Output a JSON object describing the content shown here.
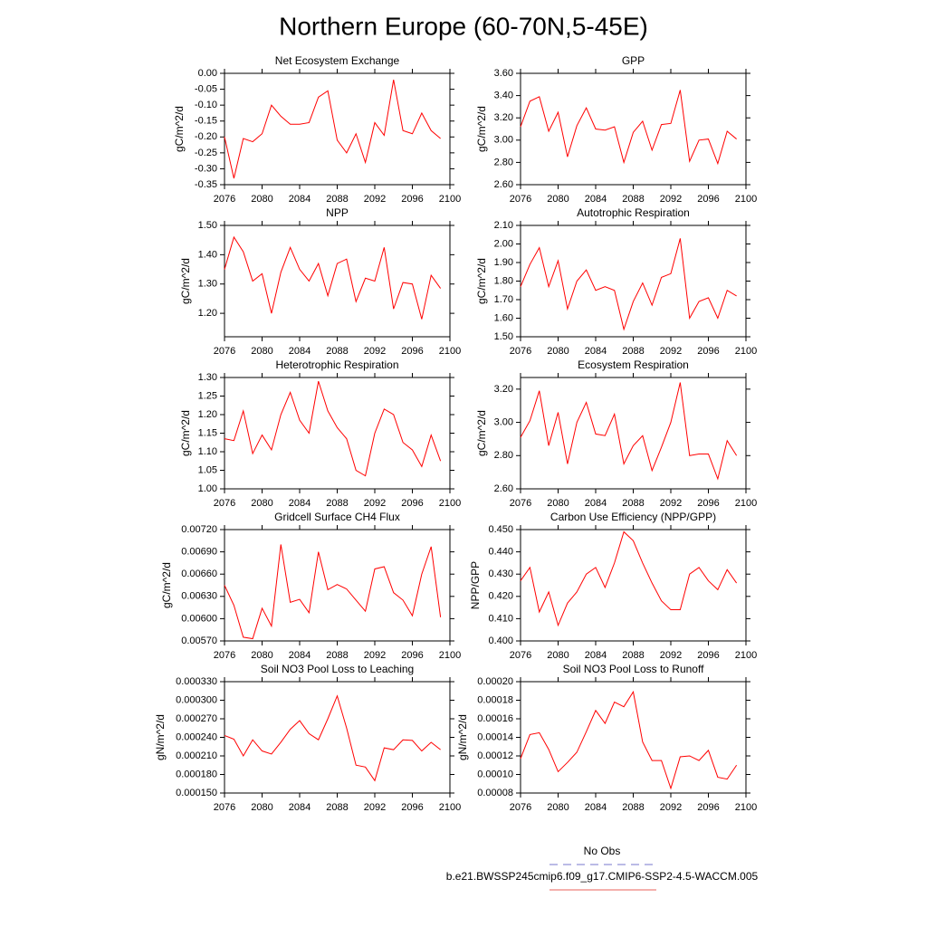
{
  "title": "Northern Europe (60-70N,5-45E)",
  "legend": [
    {
      "name": "No Obs",
      "color": "#7777cc",
      "dash": true
    },
    {
      "name": "b.e21.BWSSP245cmip6.f09_g17.CMIP6-SSP2-4.5-WACCM.005",
      "color": "#e8605a",
      "dash": false
    }
  ],
  "chart_data": [
    {
      "type": "line",
      "title": "Net Ecosystem Exchange",
      "ylabel": "gC/m^2/d",
      "color": "#ff0000",
      "x": [
        2076,
        2077,
        2078,
        2079,
        2080,
        2081,
        2082,
        2083,
        2084,
        2085,
        2086,
        2087,
        2088,
        2089,
        2090,
        2091,
        2092,
        2093,
        2094,
        2095,
        2096,
        2097,
        2098,
        2099
      ],
      "values": [
        -0.2,
        -0.33,
        -0.205,
        -0.215,
        -0.19,
        -0.1,
        -0.135,
        -0.16,
        -0.16,
        -0.155,
        -0.075,
        -0.055,
        -0.21,
        -0.25,
        -0.19,
        -0.28,
        -0.155,
        -0.195,
        -0.02,
        -0.18,
        -0.19,
        -0.125,
        -0.18,
        -0.205
      ],
      "xlim": [
        2076,
        2100
      ],
      "xticks": [
        2076,
        2080,
        2084,
        2088,
        2092,
        2096,
        2100
      ],
      "ylim": [
        -0.35,
        0
      ],
      "yticks": [
        {
          "value": -0.35,
          "label": "-0.35"
        },
        {
          "value": -0.3,
          "label": "-0.30"
        },
        {
          "value": -0.25,
          "label": "-0.25"
        },
        {
          "value": -0.2,
          "label": "-0.20"
        },
        {
          "value": -0.15,
          "label": "-0.15"
        },
        {
          "value": -0.1,
          "label": "-0.10"
        },
        {
          "value": -0.05,
          "label": "-0.05"
        },
        {
          "value": 0,
          "label": "0.00"
        }
      ]
    },
    {
      "type": "line",
      "title": "GPP",
      "ylabel": "gC/m^2/d",
      "color": "#ff0000",
      "x": [
        2076,
        2077,
        2078,
        2079,
        2080,
        2081,
        2082,
        2083,
        2084,
        2085,
        2086,
        2087,
        2088,
        2089,
        2090,
        2091,
        2092,
        2093,
        2094,
        2095,
        2096,
        2097,
        2098,
        2099
      ],
      "values": [
        3.12,
        3.35,
        3.39,
        3.08,
        3.25,
        2.85,
        3.13,
        3.29,
        3.1,
        3.09,
        3.12,
        2.8,
        3.07,
        3.17,
        2.91,
        3.14,
        3.15,
        3.45,
        2.81,
        3.0,
        3.01,
        2.79,
        3.08,
        3.01
      ],
      "xlim": [
        2076,
        2100
      ],
      "xticks": [
        2076,
        2080,
        2084,
        2088,
        2092,
        2096,
        2100
      ],
      "ylim": [
        2.6,
        3.6
      ],
      "yticks": [
        {
          "value": 2.6,
          "label": "2.60"
        },
        {
          "value": 2.8,
          "label": "2.80"
        },
        {
          "value": 3.0,
          "label": "3.00"
        },
        {
          "value": 3.2,
          "label": "3.20"
        },
        {
          "value": 3.4,
          "label": "3.40"
        },
        {
          "value": 3.6,
          "label": "3.60"
        }
      ]
    },
    {
      "type": "line",
      "title": "NPP",
      "ylabel": "gC/m^2/d",
      "color": "#ff0000",
      "x": [
        2076,
        2077,
        2078,
        2079,
        2080,
        2081,
        2082,
        2083,
        2084,
        2085,
        2086,
        2087,
        2088,
        2089,
        2090,
        2091,
        2092,
        2093,
        2094,
        2095,
        2096,
        2097,
        2098,
        2099
      ],
      "values": [
        1.35,
        1.46,
        1.41,
        1.31,
        1.335,
        1.2,
        1.34,
        1.425,
        1.35,
        1.31,
        1.37,
        1.26,
        1.37,
        1.385,
        1.24,
        1.32,
        1.31,
        1.425,
        1.215,
        1.305,
        1.3,
        1.18,
        1.33,
        1.285
      ],
      "xlim": [
        2076,
        2100
      ],
      "xticks": [
        2076,
        2080,
        2084,
        2088,
        2092,
        2096,
        2100
      ],
      "ylim": [
        1.12,
        1.5
      ],
      "yticks": [
        {
          "value": 1.2,
          "label": "1.20"
        },
        {
          "value": 1.3,
          "label": "1.30"
        },
        {
          "value": 1.4,
          "label": "1.40"
        },
        {
          "value": 1.5,
          "label": "1.50"
        }
      ]
    },
    {
      "type": "line",
      "title": "Autotrophic Respiration",
      "ylabel": "gC/m^2/d",
      "color": "#ff0000",
      "x": [
        2076,
        2077,
        2078,
        2079,
        2080,
        2081,
        2082,
        2083,
        2084,
        2085,
        2086,
        2087,
        2088,
        2089,
        2090,
        2091,
        2092,
        2093,
        2094,
        2095,
        2096,
        2097,
        2098,
        2099
      ],
      "values": [
        1.77,
        1.89,
        1.98,
        1.77,
        1.91,
        1.65,
        1.8,
        1.86,
        1.75,
        1.77,
        1.75,
        1.54,
        1.69,
        1.79,
        1.67,
        1.82,
        1.84,
        2.03,
        1.6,
        1.69,
        1.71,
        1.6,
        1.75,
        1.72
      ],
      "xlim": [
        2076,
        2100
      ],
      "xticks": [
        2076,
        2080,
        2084,
        2088,
        2092,
        2096,
        2100
      ],
      "ylim": [
        1.5,
        2.1
      ],
      "yticks": [
        {
          "value": 1.5,
          "label": "1.50"
        },
        {
          "value": 1.6,
          "label": "1.60"
        },
        {
          "value": 1.7,
          "label": "1.70"
        },
        {
          "value": 1.8,
          "label": "1.80"
        },
        {
          "value": 1.9,
          "label": "1.90"
        },
        {
          "value": 2.0,
          "label": "2.00"
        },
        {
          "value": 2.1,
          "label": "2.10"
        }
      ]
    },
    {
      "type": "line",
      "title": "Heterotrophic Respiration",
      "ylabel": "gC/m^2/d",
      "color": "#ff0000",
      "x": [
        2076,
        2077,
        2078,
        2079,
        2080,
        2081,
        2082,
        2083,
        2084,
        2085,
        2086,
        2087,
        2088,
        2089,
        2090,
        2091,
        2092,
        2093,
        2094,
        2095,
        2096,
        2097,
        2098,
        2099
      ],
      "values": [
        1.135,
        1.13,
        1.21,
        1.095,
        1.145,
        1.105,
        1.2,
        1.26,
        1.185,
        1.15,
        1.29,
        1.21,
        1.165,
        1.135,
        1.05,
        1.035,
        1.15,
        1.215,
        1.2,
        1.125,
        1.105,
        1.06,
        1.145,
        1.075
      ],
      "xlim": [
        2076,
        2100
      ],
      "xticks": [
        2076,
        2080,
        2084,
        2088,
        2092,
        2096,
        2100
      ],
      "ylim": [
        1.0,
        1.3
      ],
      "yticks": [
        {
          "value": 1.0,
          "label": "1.00"
        },
        {
          "value": 1.05,
          "label": "1.05"
        },
        {
          "value": 1.1,
          "label": "1.10"
        },
        {
          "value": 1.15,
          "label": "1.15"
        },
        {
          "value": 1.2,
          "label": "1.20"
        },
        {
          "value": 1.25,
          "label": "1.25"
        },
        {
          "value": 1.3,
          "label": "1.30"
        }
      ]
    },
    {
      "type": "line",
      "title": "Ecosystem Respiration",
      "ylabel": "gC/m^2/d",
      "color": "#ff0000",
      "x": [
        2076,
        2077,
        2078,
        2079,
        2080,
        2081,
        2082,
        2083,
        2084,
        2085,
        2086,
        2087,
        2088,
        2089,
        2090,
        2091,
        2092,
        2093,
        2094,
        2095,
        2096,
        2097,
        2098,
        2099
      ],
      "values": [
        2.91,
        3.01,
        3.19,
        2.86,
        3.06,
        2.75,
        3.0,
        3.12,
        2.93,
        2.92,
        3.05,
        2.75,
        2.86,
        2.92,
        2.71,
        2.85,
        3.0,
        3.24,
        2.8,
        2.81,
        2.81,
        2.66,
        2.89,
        2.8
      ],
      "xlim": [
        2076,
        2100
      ],
      "xticks": [
        2076,
        2080,
        2084,
        2088,
        2092,
        2096,
        2100
      ],
      "ylim": [
        2.6,
        3.27
      ],
      "yticks": [
        {
          "value": 2.6,
          "label": "2.60"
        },
        {
          "value": 2.8,
          "label": "2.80"
        },
        {
          "value": 3.0,
          "label": "3.00"
        },
        {
          "value": 3.2,
          "label": "3.20"
        }
      ]
    },
    {
      "type": "line",
      "title": "Gridcell Surface CH4 Flux",
      "ylabel": "gC/m^2/d",
      "color": "#ff0000",
      "x": [
        2076,
        2077,
        2078,
        2079,
        2080,
        2081,
        2082,
        2083,
        2084,
        2085,
        2086,
        2087,
        2088,
        2089,
        2090,
        2091,
        2092,
        2093,
        2094,
        2095,
        2096,
        2097,
        2098,
        2099
      ],
      "values": [
        0.00645,
        0.00618,
        0.00575,
        0.00573,
        0.00614,
        0.0059,
        0.007,
        0.00622,
        0.00626,
        0.00608,
        0.0069,
        0.00639,
        0.00646,
        0.0064,
        0.00625,
        0.0061,
        0.00667,
        0.0067,
        0.00635,
        0.00625,
        0.00604,
        0.0066,
        0.00697,
        0.00602
      ],
      "xlim": [
        2076,
        2100
      ],
      "xticks": [
        2076,
        2080,
        2084,
        2088,
        2092,
        2096,
        2100
      ],
      "ylim": [
        0.0057,
        0.0072
      ],
      "yticks": [
        {
          "value": 0.0057,
          "label": "0.00570"
        },
        {
          "value": 0.006,
          "label": "0.00600"
        },
        {
          "value": 0.0063,
          "label": "0.00630"
        },
        {
          "value": 0.0066,
          "label": "0.00660"
        },
        {
          "value": 0.0069,
          "label": "0.00690"
        },
        {
          "value": 0.0072,
          "label": "0.00720"
        }
      ]
    },
    {
      "type": "line",
      "title": "Carbon Use Efficiency (NPP/GPP)",
      "ylabel": "NPP/GPP",
      "color": "#ff0000",
      "x": [
        2076,
        2077,
        2078,
        2079,
        2080,
        2081,
        2082,
        2083,
        2084,
        2085,
        2086,
        2087,
        2088,
        2089,
        2090,
        2091,
        2092,
        2093,
        2094,
        2095,
        2096,
        2097,
        2098,
        2099
      ],
      "values": [
        0.427,
        0.433,
        0.413,
        0.422,
        0.407,
        0.417,
        0.422,
        0.43,
        0.433,
        0.424,
        0.435,
        0.449,
        0.445,
        0.435,
        0.426,
        0.418,
        0.414,
        0.414,
        0.43,
        0.433,
        0.427,
        0.423,
        0.432,
        0.426
      ],
      "xlim": [
        2076,
        2100
      ],
      "xticks": [
        2076,
        2080,
        2084,
        2088,
        2092,
        2096,
        2100
      ],
      "ylim": [
        0.4,
        0.45
      ],
      "yticks": [
        {
          "value": 0.4,
          "label": "0.400"
        },
        {
          "value": 0.41,
          "label": "0.410"
        },
        {
          "value": 0.42,
          "label": "0.420"
        },
        {
          "value": 0.43,
          "label": "0.430"
        },
        {
          "value": 0.44,
          "label": "0.440"
        },
        {
          "value": 0.45,
          "label": "0.450"
        }
      ]
    },
    {
      "type": "line",
      "title": "Soil NO3 Pool Loss to Leaching",
      "ylabel": "gN/m^2/d",
      "color": "#ff0000",
      "x": [
        2076,
        2077,
        2078,
        2079,
        2080,
        2081,
        2082,
        2083,
        2084,
        2085,
        2086,
        2087,
        2088,
        2089,
        2090,
        2091,
        2092,
        2093,
        2094,
        2095,
        2096,
        2097,
        2098,
        2099
      ],
      "values": [
        0.000243,
        0.000237,
        0.00021,
        0.000236,
        0.000218,
        0.000213,
        0.000232,
        0.000253,
        0.000267,
        0.000246,
        0.000236,
        0.00027,
        0.000307,
        0.000255,
        0.000195,
        0.000192,
        0.00017,
        0.000223,
        0.00022,
        0.000236,
        0.000235,
        0.000218,
        0.000232,
        0.00022
      ],
      "xlim": [
        2076,
        2100
      ],
      "xticks": [
        2076,
        2080,
        2084,
        2088,
        2092,
        2096,
        2100
      ],
      "ylim": [
        0.00015,
        0.00033
      ],
      "yticks": [
        {
          "value": 0.00015,
          "label": "0.000150"
        },
        {
          "value": 0.00018,
          "label": "0.000180"
        },
        {
          "value": 0.00021,
          "label": "0.000210"
        },
        {
          "value": 0.00024,
          "label": "0.000240"
        },
        {
          "value": 0.00027,
          "label": "0.000270"
        },
        {
          "value": 0.0003,
          "label": "0.000300"
        },
        {
          "value": 0.00033,
          "label": "0.000330"
        }
      ]
    },
    {
      "type": "line",
      "title": "Soil NO3 Pool Loss to Runoff",
      "ylabel": "gN/m^2/d",
      "color": "#ff0000",
      "x": [
        2076,
        2077,
        2078,
        2079,
        2080,
        2081,
        2082,
        2083,
        2084,
        2085,
        2086,
        2087,
        2088,
        2089,
        2090,
        2091,
        2092,
        2093,
        2094,
        2095,
        2096,
        2097,
        2098,
        2099
      ],
      "values": [
        0.000117,
        0.000143,
        0.000145,
        0.000127,
        0.000103,
        0.000113,
        0.000124,
        0.000146,
        0.000169,
        0.000155,
        0.000178,
        0.000173,
        0.000189,
        0.000135,
        0.000115,
        0.000115,
        8.5e-05,
        0.000119,
        0.00012,
        0.000115,
        0.000126,
        9.7e-05,
        9.5e-05,
        0.00011
      ],
      "xlim": [
        2076,
        2100
      ],
      "xticks": [
        2076,
        2080,
        2084,
        2088,
        2092,
        2096,
        2100
      ],
      "ylim": [
        8e-05,
        0.0002
      ],
      "yticks": [
        {
          "value": 8e-05,
          "label": "0.00008"
        },
        {
          "value": 0.0001,
          "label": "0.00010"
        },
        {
          "value": 0.00012,
          "label": "0.00012"
        },
        {
          "value": 0.00014,
          "label": "0.00014"
        },
        {
          "value": 0.00016,
          "label": "0.00016"
        },
        {
          "value": 0.00018,
          "label": "0.00018"
        },
        {
          "value": 0.0002,
          "label": "0.00020"
        }
      ]
    }
  ]
}
